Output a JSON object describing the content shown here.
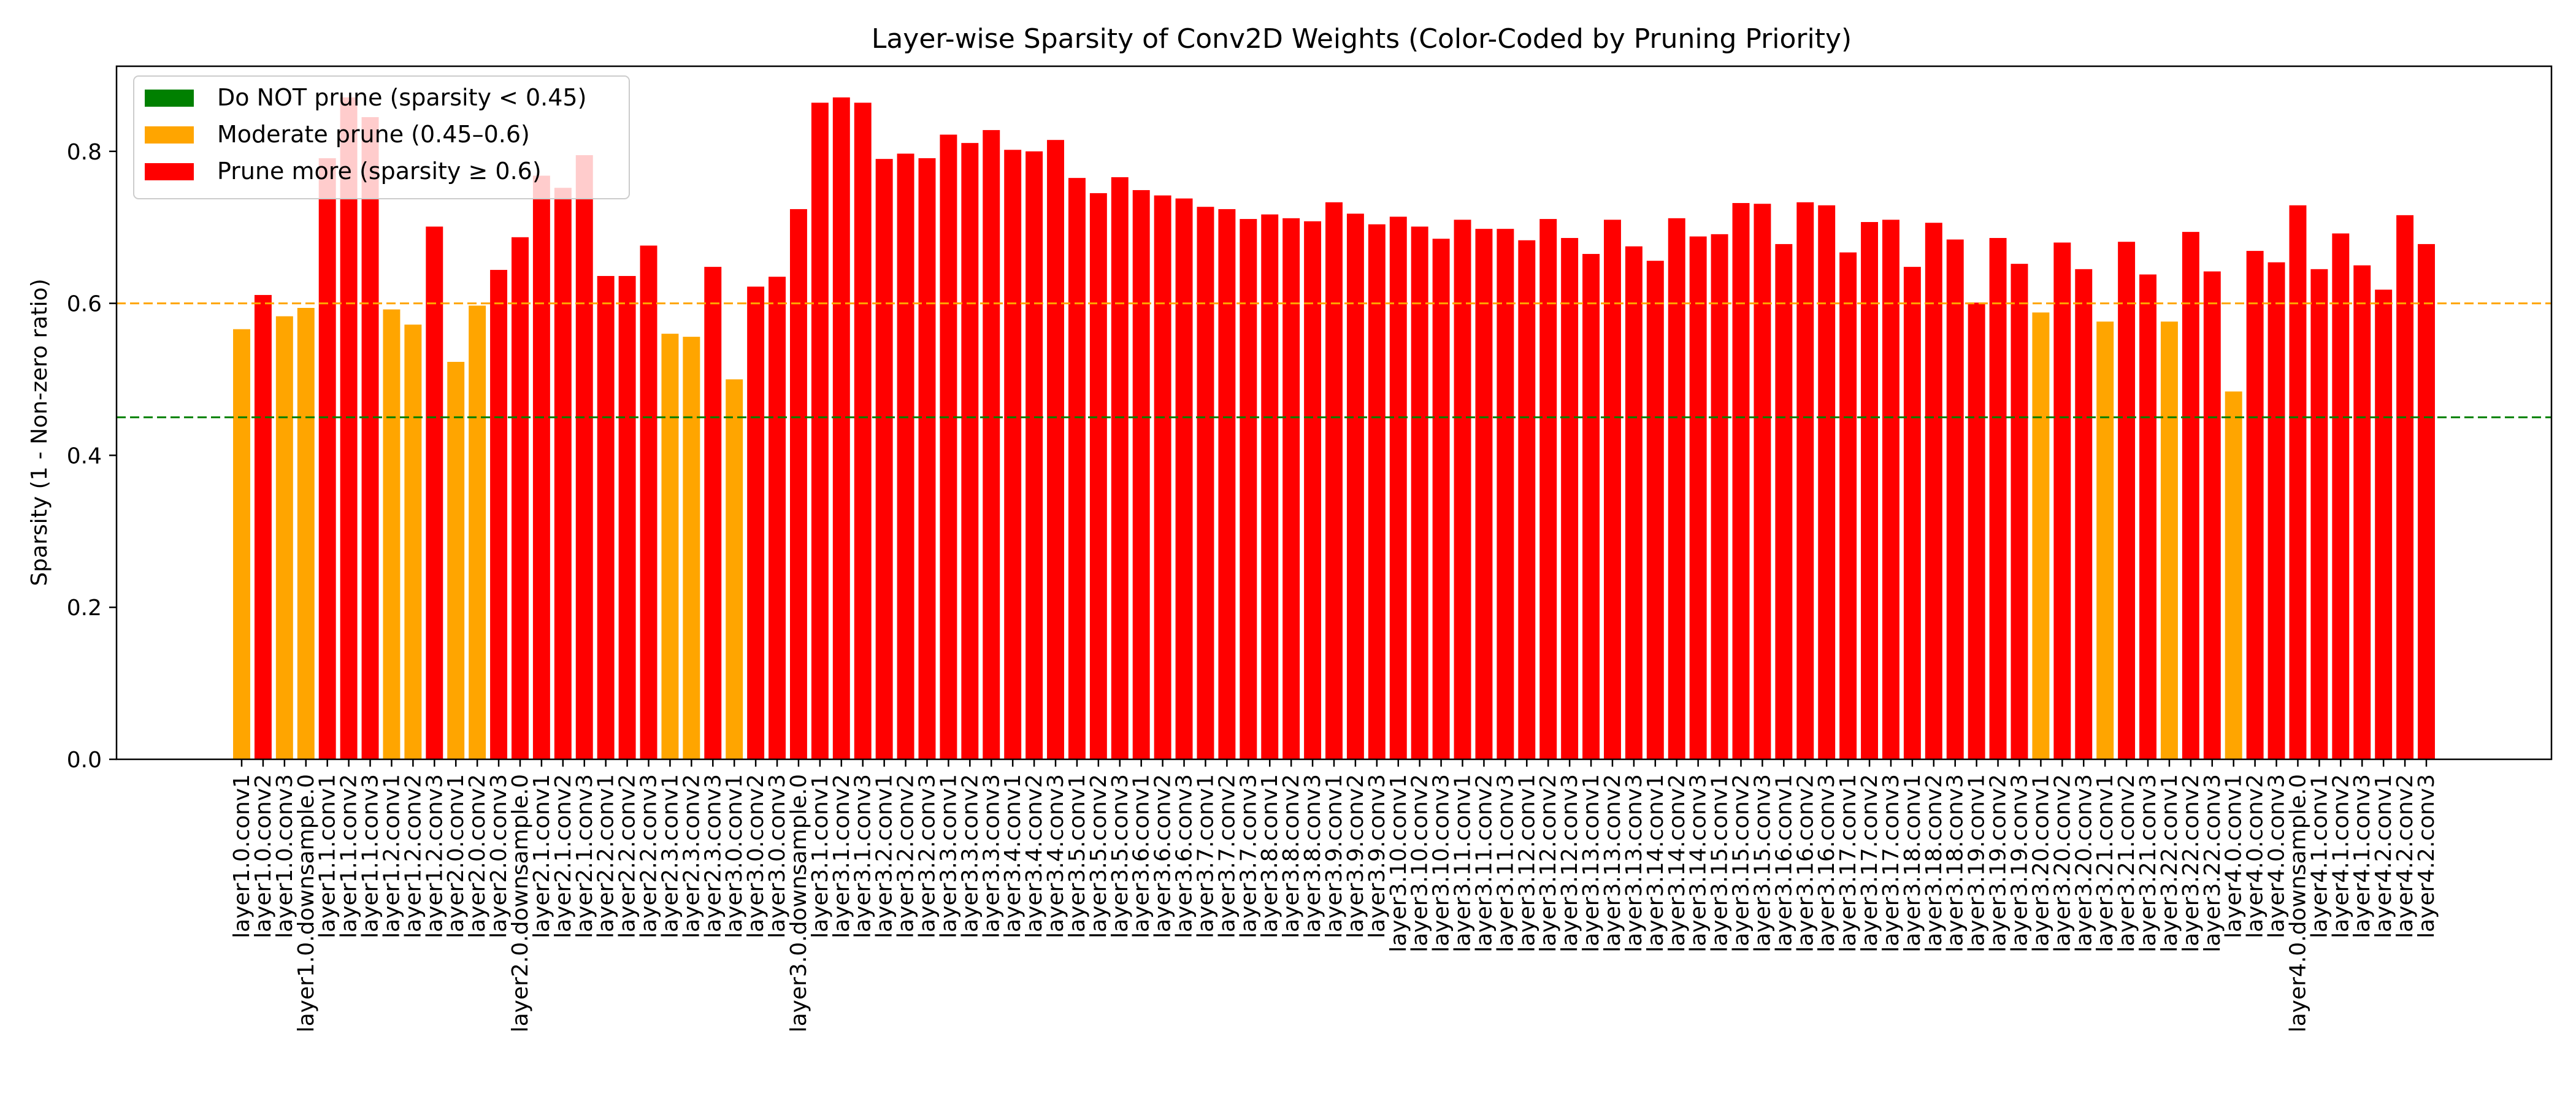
{
  "chart_data": {
    "type": "bar",
    "title": "Layer-wise Sparsity of Conv2D Weights (Color-Coded by Pruning Priority)",
    "xlabel": "",
    "ylabel": "Sparsity (1 - Non-zero ratio)",
    "ylim": [
      0,
      0.912
    ],
    "yticks": [
      "0.0",
      "0.2",
      "0.4",
      "0.6",
      "0.8"
    ],
    "grid": false,
    "legend_position": "upper-left",
    "thresholds": [
      {
        "name": "green-threshold",
        "value": 0.45,
        "color": "#008000"
      },
      {
        "name": "orange-threshold",
        "value": 0.6,
        "color": "#ffa500"
      }
    ],
    "legend": [
      {
        "label": "Do NOT prune (sparsity < 0.45)",
        "color": "#008000"
      },
      {
        "label": "Moderate prune (0.45–0.6)",
        "color": "#ffa500"
      },
      {
        "label": "Prune more (sparsity ≥ 0.6)",
        "color": "#ff0000"
      }
    ],
    "colors": {
      "low": "#008000",
      "mid": "#ffa500",
      "high": "#ff0000"
    },
    "categories": [
      "layer1.0.conv1",
      "layer1.0.conv2",
      "layer1.0.conv3",
      "layer1.0.downsample.0",
      "layer1.1.conv1",
      "layer1.1.conv2",
      "layer1.1.conv3",
      "layer1.2.conv1",
      "layer1.2.conv2",
      "layer1.2.conv3",
      "layer2.0.conv1",
      "layer2.0.conv2",
      "layer2.0.conv3",
      "layer2.0.downsample.0",
      "layer2.1.conv1",
      "layer2.1.conv2",
      "layer2.1.conv3",
      "layer2.2.conv1",
      "layer2.2.conv2",
      "layer2.2.conv3",
      "layer2.3.conv1",
      "layer2.3.conv2",
      "layer2.3.conv3",
      "layer3.0.conv1",
      "layer3.0.conv2",
      "layer3.0.conv3",
      "layer3.0.downsample.0",
      "layer3.1.conv1",
      "layer3.1.conv2",
      "layer3.1.conv3",
      "layer3.2.conv1",
      "layer3.2.conv2",
      "layer3.2.conv3",
      "layer3.3.conv1",
      "layer3.3.conv2",
      "layer3.3.conv3",
      "layer3.4.conv1",
      "layer3.4.conv2",
      "layer3.4.conv3",
      "layer3.5.conv1",
      "layer3.5.conv2",
      "layer3.5.conv3",
      "layer3.6.conv1",
      "layer3.6.conv2",
      "layer3.6.conv3",
      "layer3.7.conv1",
      "layer3.7.conv2",
      "layer3.7.conv3",
      "layer3.8.conv1",
      "layer3.8.conv2",
      "layer3.8.conv3",
      "layer3.9.conv1",
      "layer3.9.conv2",
      "layer3.9.conv3",
      "layer3.10.conv1",
      "layer3.10.conv2",
      "layer3.10.conv3",
      "layer3.11.conv1",
      "layer3.11.conv2",
      "layer3.11.conv3",
      "layer3.12.conv1",
      "layer3.12.conv2",
      "layer3.12.conv3",
      "layer3.13.conv1",
      "layer3.13.conv2",
      "layer3.13.conv3",
      "layer3.14.conv1",
      "layer3.14.conv2",
      "layer3.14.conv3",
      "layer3.15.conv1",
      "layer3.15.conv2",
      "layer3.15.conv3",
      "layer3.16.conv1",
      "layer3.16.conv2",
      "layer3.16.conv3",
      "layer3.17.conv1",
      "layer3.17.conv2",
      "layer3.17.conv3",
      "layer3.18.conv1",
      "layer3.18.conv2",
      "layer3.18.conv3",
      "layer3.19.conv1",
      "layer3.19.conv2",
      "layer3.19.conv3",
      "layer3.20.conv1",
      "layer3.20.conv2",
      "layer3.20.conv3",
      "layer3.21.conv1",
      "layer3.21.conv2",
      "layer3.21.conv3",
      "layer3.22.conv1",
      "layer3.22.conv2",
      "layer3.22.conv3",
      "layer4.0.conv1",
      "layer4.0.conv2",
      "layer4.0.conv3",
      "layer4.0.downsample.0",
      "layer4.1.conv1",
      "layer4.1.conv2",
      "layer4.1.conv3",
      "layer4.2.conv1",
      "layer4.2.conv2",
      "layer4.2.conv3"
    ],
    "values": [
      0.566,
      0.611,
      0.583,
      0.594,
      0.791,
      0.871,
      0.845,
      0.592,
      0.572,
      0.701,
      0.523,
      0.597,
      0.644,
      0.687,
      0.768,
      0.752,
      0.795,
      0.636,
      0.636,
      0.676,
      0.56,
      0.556,
      0.648,
      0.5,
      0.622,
      0.635,
      0.724,
      0.864,
      0.871,
      0.864,
      0.79,
      0.797,
      0.791,
      0.822,
      0.811,
      0.828,
      0.802,
      0.8,
      0.815,
      0.765,
      0.745,
      0.766,
      0.749,
      0.742,
      0.738,
      0.727,
      0.724,
      0.711,
      0.717,
      0.712,
      0.708,
      0.733,
      0.718,
      0.704,
      0.714,
      0.701,
      0.685,
      0.71,
      0.698,
      0.698,
      0.683,
      0.711,
      0.686,
      0.665,
      0.71,
      0.675,
      0.656,
      0.712,
      0.688,
      0.691,
      0.732,
      0.731,
      0.678,
      0.733,
      0.729,
      0.667,
      0.707,
      0.71,
      0.648,
      0.706,
      0.684,
      0.601,
      0.686,
      0.652,
      0.588,
      0.68,
      0.645,
      0.576,
      0.681,
      0.638,
      0.576,
      0.694,
      0.642,
      0.484,
      0.669,
      0.654,
      0.729,
      0.645,
      0.692,
      0.65,
      0.618,
      0.716,
      0.678
    ]
  }
}
